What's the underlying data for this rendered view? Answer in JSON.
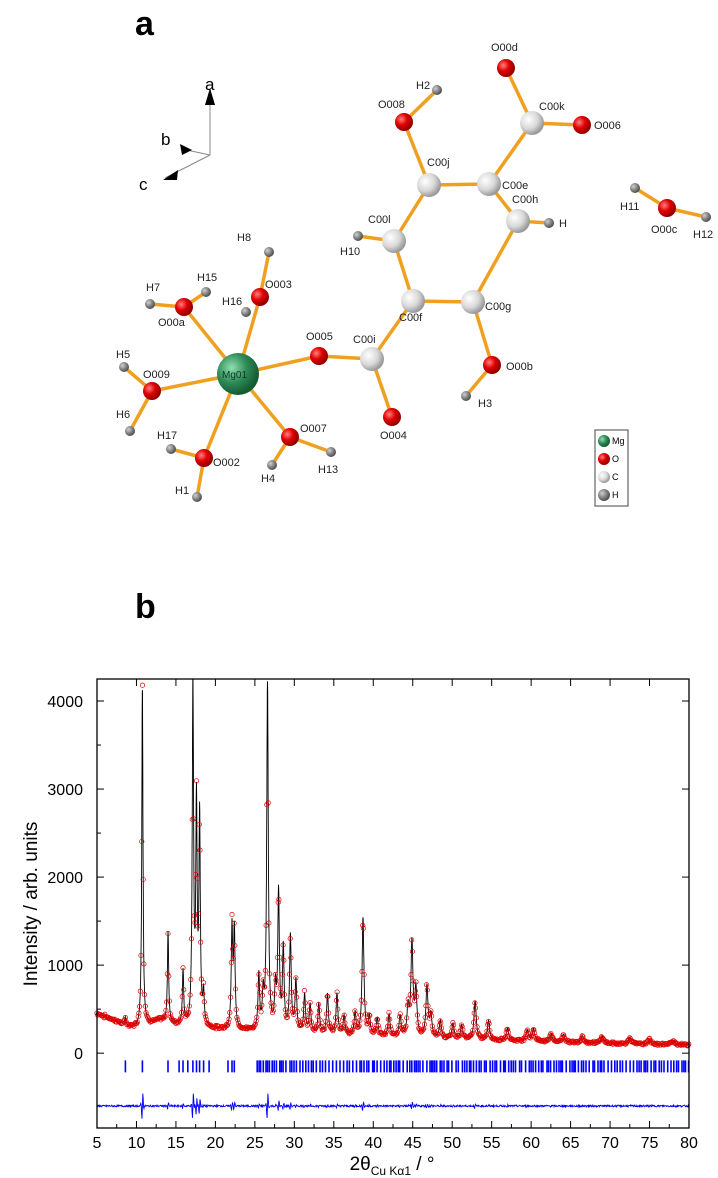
{
  "panels": {
    "a": "a",
    "b": "b"
  },
  "structure": {
    "axes": {
      "a": "a",
      "b": "b",
      "c": "c"
    },
    "legend": [
      {
        "label": "Mg",
        "color": "#2e8b57"
      },
      {
        "label": "O",
        "color": "#e00000"
      },
      {
        "label": "C",
        "color": "#d8d8d8"
      },
      {
        "label": "H",
        "color": "#777777"
      }
    ],
    "atom_labels": [
      "O00d",
      "H2",
      "O008",
      "C00k",
      "O006",
      "C00j",
      "C00e",
      "H11",
      "O00c",
      "H12",
      "H8",
      "C00l",
      "C00h",
      "H",
      "H10",
      "H15",
      "O003",
      "H7",
      "O00a",
      "H16",
      "C00f",
      "C00g",
      "O005",
      "C00i",
      "H5",
      "O009",
      "Mg01",
      "O00b",
      "H6",
      "H3",
      "O007",
      "O004",
      "H17",
      "O002",
      "H13",
      "H4",
      "H1"
    ],
    "colors": {
      "bond": "#f0a020",
      "mg": "#2e8b57",
      "o": "#e00000",
      "c": "#d8d8d8",
      "h": "#808080"
    }
  },
  "chart_data": {
    "type": "line",
    "xlabel_main": "2θ",
    "xlabel_sub": "Cu Kα1",
    "xlabel_unit": " / °",
    "ylabel": "Intensity / arb. units",
    "xlim": [
      5,
      80
    ],
    "ylim": [
      -850,
      4250
    ],
    "xticks": [
      5,
      10,
      15,
      20,
      25,
      30,
      35,
      40,
      45,
      50,
      55,
      60,
      65,
      70,
      75,
      80
    ],
    "yticks": [
      0,
      1000,
      2000,
      3000,
      4000
    ],
    "series": [
      {
        "role": "observed",
        "style": "red open circles",
        "color": "#e00000"
      },
      {
        "role": "calculated",
        "style": "black line",
        "color": "#000000"
      },
      {
        "role": "reflection positions",
        "style": "blue ticks",
        "color": "#0000ff"
      },
      {
        "role": "difference",
        "style": "blue line",
        "color": "#0000ff"
      }
    ],
    "background": [
      [
        5,
        450
      ],
      [
        7,
        380
      ],
      [
        9,
        300
      ],
      [
        10,
        290
      ],
      [
        11.5,
        330
      ],
      [
        13,
        370
      ],
      [
        14,
        340
      ],
      [
        16,
        300
      ],
      [
        20,
        270
      ],
      [
        25,
        250
      ],
      [
        30,
        230
      ],
      [
        35,
        210
      ],
      [
        40,
        190
      ],
      [
        45,
        175
      ],
      [
        50,
        160
      ],
      [
        55,
        145
      ],
      [
        60,
        135
      ],
      [
        65,
        120
      ],
      [
        70,
        110
      ],
      [
        75,
        100
      ],
      [
        80,
        95
      ]
    ],
    "peaks": [
      [
        8.6,
        90
      ],
      [
        10.75,
        3850
      ],
      [
        14.0,
        1030
      ],
      [
        15.9,
        620
      ],
      [
        17.15,
        3900
      ],
      [
        17.6,
        2450
      ],
      [
        18.0,
        2350
      ],
      [
        18.5,
        350
      ],
      [
        22.1,
        1130
      ],
      [
        22.4,
        1100
      ],
      [
        25.5,
        620
      ],
      [
        26.05,
        380
      ],
      [
        26.6,
        3930
      ],
      [
        27.6,
        450
      ],
      [
        28.0,
        1560
      ],
      [
        28.6,
        930
      ],
      [
        29.5,
        1080
      ],
      [
        30.2,
        580
      ],
      [
        31.3,
        430
      ],
      [
        32.0,
        320
      ],
      [
        33.1,
        330
      ],
      [
        34.2,
        450
      ],
      [
        35.4,
        460
      ],
      [
        36.3,
        210
      ],
      [
        37.7,
        250
      ],
      [
        38.7,
        1330
      ],
      [
        39.5,
        210
      ],
      [
        40.5,
        200
      ],
      [
        42.0,
        250
      ],
      [
        43.4,
        230
      ],
      [
        44.4,
        320
      ],
      [
        44.9,
        1060
      ],
      [
        45.4,
        520
      ],
      [
        46.8,
        580
      ],
      [
        47.3,
        250
      ],
      [
        48.5,
        200
      ],
      [
        50.1,
        170
      ],
      [
        51.2,
        160
      ],
      [
        52.9,
        440
      ],
      [
        54.6,
        220
      ],
      [
        57.0,
        140
      ],
      [
        59.5,
        120
      ],
      [
        60.3,
        140
      ],
      [
        62.5,
        100
      ],
      [
        64.1,
        90
      ],
      [
        66.5,
        80
      ],
      [
        69.0,
        80
      ],
      [
        72.5,
        70
      ],
      [
        75.0,
        60
      ],
      [
        78.0,
        50
      ]
    ],
    "difference_offset": -600,
    "reflection_baseline": -150
  }
}
